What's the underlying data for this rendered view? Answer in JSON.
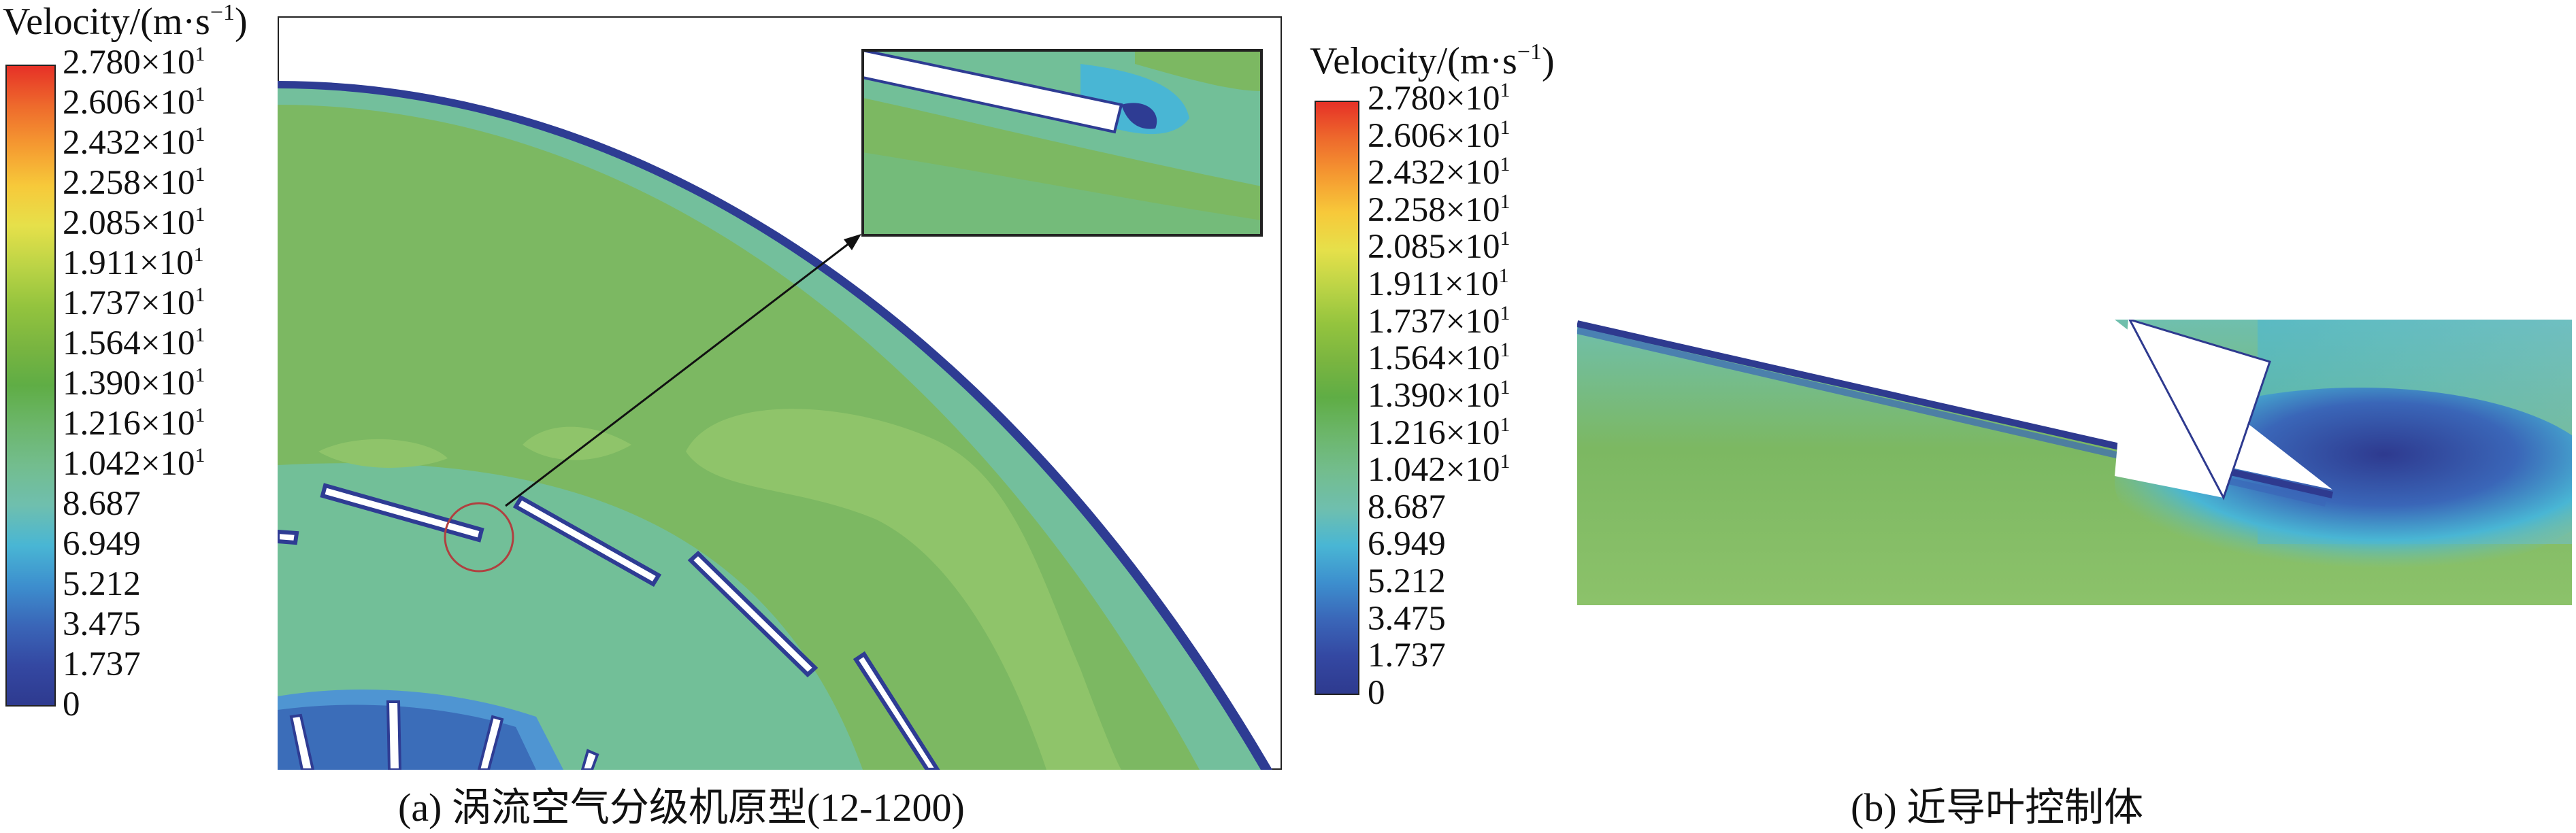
{
  "legend": {
    "title": "Velocity/(m·s",
    "title_exp": "−1",
    "title_close": ")",
    "ticks": [
      {
        "m": "2.780×10",
        "e": "1"
      },
      {
        "m": "2.606×10",
        "e": "1"
      },
      {
        "m": "2.432×10",
        "e": "1"
      },
      {
        "m": "2.258×10",
        "e": "1"
      },
      {
        "m": "2.085×10",
        "e": "1"
      },
      {
        "m": "1.911×10",
        "e": "1"
      },
      {
        "m": "1.737×10",
        "e": "1"
      },
      {
        "m": "1.564×10",
        "e": "1"
      },
      {
        "m": "1.390×10",
        "e": "1"
      },
      {
        "m": "1.216×10",
        "e": "1"
      },
      {
        "m": "1.042×10",
        "e": "1"
      },
      {
        "m": "8.687",
        "e": ""
      },
      {
        "m": "6.949",
        "e": ""
      },
      {
        "m": "5.212",
        "e": ""
      },
      {
        "m": "3.475",
        "e": ""
      },
      {
        "m": "1.737",
        "e": ""
      },
      {
        "m": "0",
        "e": ""
      }
    ],
    "colors": [
      "#e63127",
      "#ee6a2c",
      "#f59a31",
      "#f7c93a",
      "#e6e04a",
      "#bcd446",
      "#94c43e",
      "#7ab540",
      "#5fad45",
      "#6cb66b",
      "#73bd8e",
      "#6fbfae",
      "#49b6d4",
      "#3d8fce",
      "#3a66b8",
      "#3448a2",
      "#2e3a8f"
    ]
  },
  "colors": {
    "field_green": "#7db964",
    "field_light": "#8fc46a",
    "field_teal": "#70bf98",
    "wall_blue": "#2e3c93",
    "inner_blue": "#4f95d2"
  },
  "captions": {
    "a": "(a) 涡流空气分级机原型(12-1200)",
    "b": "(b) 近导叶控制体"
  }
}
